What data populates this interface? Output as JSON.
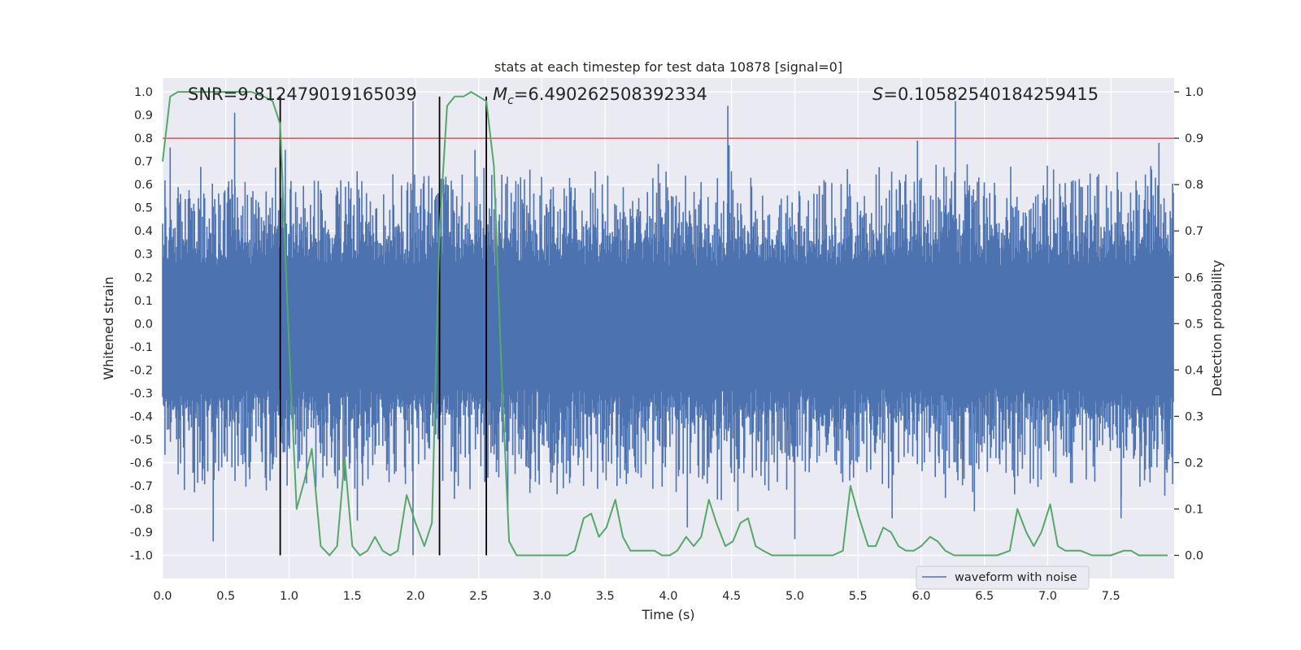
{
  "chart_data": {
    "type": "line",
    "title": "stats at each timestep for test data 10878 [signal=0]",
    "xlabel": "Time (s)",
    "ylabel": "Whitened strain",
    "y2label": "Detection probability",
    "xlim": [
      0,
      8
    ],
    "ylim": [
      -1.1,
      1.06
    ],
    "y2lim": [
      -0.05,
      1.03
    ],
    "xticks": [
      "0.0",
      "0.5",
      "1.0",
      "1.5",
      "2.0",
      "2.5",
      "3.0",
      "3.5",
      "4.0",
      "4.5",
      "5.0",
      "5.5",
      "6.0",
      "6.5",
      "7.0",
      "7.5"
    ],
    "yticks": [
      "1.0",
      "0.9",
      "0.8",
      "0.7",
      "0.6",
      "0.5",
      "0.4",
      "0.3",
      "0.2",
      "0.1",
      "0.0",
      "-0.1",
      "-0.2",
      "-0.3",
      "-0.4",
      "-0.5",
      "-0.6",
      "-0.7",
      "-0.8",
      "-0.9",
      "-1.0"
    ],
    "y2ticks": [
      "1.0",
      "0.9",
      "0.8",
      "0.7",
      "0.6",
      "0.5",
      "0.4",
      "0.3",
      "0.2",
      "0.1",
      "0.0"
    ],
    "grid": true,
    "legend_position": "lower-right",
    "annotations": {
      "snr": "SNR=9.812479019165039",
      "mc_symbol": "M",
      "mc_sub": "c",
      "mc_value": "=6.490262508392334",
      "s_symbol": "S",
      "s_value": "=0.10582540184259415"
    },
    "series": [
      {
        "name": "waveform with noise",
        "axis": "left",
        "color": "#4c72b0",
        "kind": "dense-noise",
        "envelope": {
          "upper_typical": 0.45,
          "lower_typical": -0.5,
          "upper_max": 1.0,
          "lower_min": -1.0
        },
        "peaks_upper": [
          {
            "x": 0.06,
            "y": 0.76
          },
          {
            "x": 0.57,
            "y": 0.91
          },
          {
            "x": 0.97,
            "y": 0.75
          },
          {
            "x": 1.98,
            "y": 0.96
          },
          {
            "x": 2.47,
            "y": 0.75
          },
          {
            "x": 4.47,
            "y": 0.94
          },
          {
            "x": 4.48,
            "y": 0.77
          },
          {
            "x": 5.97,
            "y": 0.79
          },
          {
            "x": 6.27,
            "y": 0.96
          },
          {
            "x": 7.88,
            "y": 0.78
          }
        ],
        "peaks_lower": [
          {
            "x": 0.4,
            "y": -0.94
          },
          {
            "x": 0.82,
            "y": -0.72
          },
          {
            "x": 1.54,
            "y": -0.85
          },
          {
            "x": 1.98,
            "y": -1.0
          },
          {
            "x": 2.73,
            "y": -0.81
          },
          {
            "x": 4.15,
            "y": -0.88
          },
          {
            "x": 4.55,
            "y": -0.81
          },
          {
            "x": 5.0,
            "y": -0.93
          },
          {
            "x": 5.77,
            "y": -0.84
          },
          {
            "x": 6.42,
            "y": -0.81
          },
          {
            "x": 7.58,
            "y": -0.84
          }
        ]
      },
      {
        "name": "",
        "axis": "right",
        "color": "#55a868",
        "kind": "line",
        "x": [
          0.0,
          0.06,
          0.12,
          0.2,
          0.3,
          0.4,
          0.5,
          0.6,
          0.7,
          0.8,
          0.87,
          0.93,
          1.0,
          1.06,
          1.12,
          1.18,
          1.25,
          1.32,
          1.38,
          1.44,
          1.5,
          1.56,
          1.62,
          1.68,
          1.74,
          1.8,
          1.86,
          1.93,
          2.0,
          2.07,
          2.13,
          2.19,
          2.25,
          2.31,
          2.38,
          2.44,
          2.5,
          2.56,
          2.62,
          2.68,
          2.74,
          2.8,
          2.9,
          3.0,
          3.1,
          3.2,
          3.26,
          3.33,
          3.39,
          3.45,
          3.51,
          3.58,
          3.64,
          3.7,
          3.76,
          3.83,
          3.89,
          3.95,
          4.01,
          4.07,
          4.14,
          4.2,
          4.26,
          4.32,
          4.38,
          4.45,
          4.51,
          4.57,
          4.63,
          4.69,
          4.75,
          4.82,
          4.9,
          5.0,
          5.1,
          5.2,
          5.3,
          5.38,
          5.44,
          5.51,
          5.58,
          5.64,
          5.7,
          5.76,
          5.82,
          5.88,
          5.94,
          6.0,
          6.07,
          6.13,
          6.19,
          6.26,
          6.32,
          6.4,
          6.5,
          6.6,
          6.7,
          6.76,
          6.83,
          6.89,
          6.95,
          7.02,
          7.08,
          7.14,
          7.2,
          7.26,
          7.35,
          7.5,
          7.6,
          7.66,
          7.72,
          7.8,
          7.95
        ],
        "y": [
          0.85,
          0.99,
          1.0,
          1.0,
          1.0,
          1.0,
          1.0,
          1.0,
          1.0,
          0.99,
          0.98,
          0.93,
          0.45,
          0.1,
          0.16,
          0.23,
          0.02,
          0.0,
          0.02,
          0.21,
          0.02,
          0.0,
          0.01,
          0.04,
          0.01,
          0.0,
          0.01,
          0.13,
          0.07,
          0.02,
          0.07,
          0.7,
          0.97,
          0.99,
          0.99,
          1.0,
          0.99,
          0.98,
          0.84,
          0.4,
          0.03,
          0.0,
          0.0,
          0.0,
          0.0,
          0.0,
          0.01,
          0.08,
          0.09,
          0.04,
          0.06,
          0.12,
          0.04,
          0.01,
          0.01,
          0.01,
          0.01,
          0.0,
          0.0,
          0.01,
          0.04,
          0.02,
          0.04,
          0.12,
          0.07,
          0.02,
          0.03,
          0.07,
          0.08,
          0.02,
          0.01,
          0.0,
          0.0,
          0.0,
          0.0,
          0.0,
          0.0,
          0.01,
          0.15,
          0.08,
          0.02,
          0.02,
          0.06,
          0.05,
          0.02,
          0.01,
          0.01,
          0.02,
          0.04,
          0.03,
          0.01,
          0.0,
          0.0,
          0.0,
          0.0,
          0.0,
          0.01,
          0.1,
          0.05,
          0.02,
          0.05,
          0.11,
          0.02,
          0.01,
          0.01,
          0.01,
          0.0,
          0.0,
          0.01,
          0.01,
          0.0,
          0.0,
          0.0
        ]
      }
    ],
    "threshold": {
      "axis": "right",
      "y": 0.9,
      "color": "#c44e52"
    },
    "vlines": {
      "x": [
        0.93,
        2.19,
        2.56
      ],
      "y2_range": [
        0.0,
        0.99
      ],
      "color": "#000000"
    }
  }
}
